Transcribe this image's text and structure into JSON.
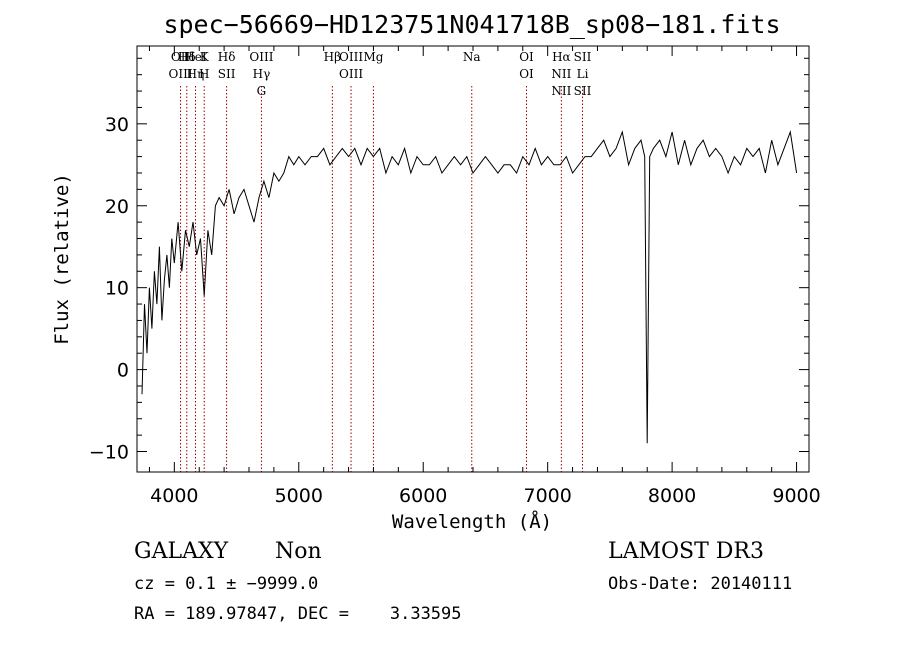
{
  "chart_data": {
    "type": "line",
    "title": "spec−56669−HD123751N041718B_sp08−181.fits",
    "xlabel": "Wavelength (Å)",
    "ylabel": "Flux (relative)",
    "xlim": [
      3700,
      9100
    ],
    "ylim": [
      -12.5,
      39.5
    ],
    "xticks": [
      4000,
      5000,
      6000,
      7000,
      8000,
      9000
    ],
    "yticks": [
      -10,
      0,
      10,
      20,
      30
    ],
    "grid": false,
    "series": [
      {
        "name": "spectrum",
        "x": [
          3740,
          3760,
          3780,
          3800,
          3820,
          3840,
          3860,
          3880,
          3900,
          3920,
          3940,
          3960,
          3980,
          4000,
          4030,
          4060,
          4090,
          4120,
          4150,
          4180,
          4210,
          4240,
          4270,
          4300,
          4330,
          4360,
          4400,
          4440,
          4480,
          4520,
          4560,
          4600,
          4640,
          4680,
          4720,
          4760,
          4800,
          4840,
          4880,
          4920,
          4960,
          5000,
          5050,
          5100,
          5150,
          5200,
          5250,
          5300,
          5350,
          5400,
          5450,
          5500,
          5550,
          5600,
          5650,
          5700,
          5750,
          5800,
          5850,
          5900,
          5950,
          6000,
          6050,
          6100,
          6150,
          6200,
          6250,
          6300,
          6350,
          6400,
          6450,
          6500,
          6550,
          6600,
          6650,
          6700,
          6750,
          6800,
          6850,
          6900,
          6950,
          7000,
          7050,
          7100,
          7150,
          7200,
          7250,
          7300,
          7350,
          7400,
          7450,
          7500,
          7550,
          7600,
          7650,
          7700,
          7750,
          7780,
          7800,
          7820,
          7850,
          7900,
          7950,
          8000,
          8050,
          8100,
          8150,
          8200,
          8250,
          8300,
          8350,
          8400,
          8450,
          8500,
          8550,
          8600,
          8650,
          8700,
          8750,
          8800,
          8850,
          8900,
          8950,
          9000
        ],
        "values": [
          -3,
          8,
          2,
          10,
          5,
          12,
          8,
          15,
          6,
          11,
          14,
          10,
          16,
          13,
          18,
          12,
          17,
          15,
          18,
          14,
          16,
          9,
          17,
          14,
          20,
          21,
          20,
          22,
          19,
          21,
          22,
          20,
          18,
          21,
          23,
          21,
          24,
          23,
          24,
          26,
          25,
          26,
          25,
          26,
          26,
          27,
          25,
          26,
          27,
          26,
          27,
          25,
          27,
          26,
          27,
          24,
          26,
          25,
          27,
          24,
          26,
          25,
          25,
          26,
          24,
          25,
          26,
          25,
          26,
          24,
          25,
          26,
          25,
          24,
          25,
          25,
          24,
          26,
          25,
          27,
          25,
          26,
          25,
          25,
          26,
          24,
          25,
          26,
          26,
          27,
          28,
          26,
          27,
          29,
          25,
          27,
          28,
          26,
          -9,
          26,
          27,
          28,
          26,
          29,
          25,
          28,
          25,
          27,
          28,
          26,
          27,
          26,
          24,
          26,
          25,
          27,
          26,
          27,
          24,
          28,
          25,
          27,
          29,
          24
        ]
      }
    ],
    "line_markers": [
      {
        "wavelength": 4050,
        "labels": [
          "OII",
          "OIII"
        ]
      },
      {
        "wavelength": 4100,
        "labels": [
          "Hδ"
        ]
      },
      {
        "wavelength": 4170,
        "labels": [
          "HeI",
          "Hη"
        ]
      },
      {
        "wavelength": 4240,
        "labels": [
          "K",
          "H"
        ]
      },
      {
        "wavelength": 4420,
        "labels": [
          "Hδ",
          "SII"
        ]
      },
      {
        "wavelength": 4700,
        "labels": [
          "OIII",
          "Hγ",
          "G"
        ]
      },
      {
        "wavelength": 5270,
        "labels": [
          "Hβ"
        ]
      },
      {
        "wavelength": 5420,
        "labels": [
          "OIII",
          "OIII"
        ]
      },
      {
        "wavelength": 5600,
        "labels": [
          "Mg"
        ]
      },
      {
        "wavelength": 6390,
        "labels": [
          "Na"
        ]
      },
      {
        "wavelength": 6830,
        "labels": [
          "OI",
          "OI"
        ]
      },
      {
        "wavelength": 7110,
        "labels": [
          "Hα",
          "NII",
          "NII"
        ]
      },
      {
        "wavelength": 7280,
        "labels": [
          "SII",
          "Li",
          "SII"
        ]
      }
    ]
  },
  "info": {
    "class": "GALAXY",
    "subclass": "Non",
    "survey": "LAMOST DR3",
    "cz": "cz = 0.1 ± −9999.0",
    "obs_date": "Obs-Date: 20140111",
    "radec": "RA = 189.97847, DEC =    3.33595"
  }
}
